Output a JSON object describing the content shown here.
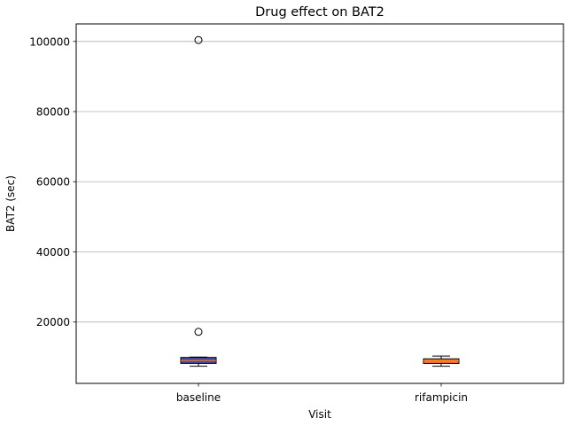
{
  "chart_data": {
    "type": "boxplot",
    "title": "Drug effect on BAT2",
    "xlabel": "Visit",
    "ylabel": "BAT2 (sec)",
    "categories": [
      "baseline",
      "rifampicin"
    ],
    "ylim": [
      2500,
      105000
    ],
    "yticks": [
      20000,
      40000,
      60000,
      80000,
      100000
    ],
    "ytick_labels": [
      "20000",
      "40000",
      "60000",
      "80000",
      "100000"
    ],
    "grid": "y",
    "boxes": [
      {
        "label": "baseline",
        "whisker_low": 7400,
        "q1": 8200,
        "median": 9000,
        "q3": 9900,
        "whisker_high": 10000,
        "outliers": [
          17200,
          100400
        ],
        "color": "#4a4aa8"
      },
      {
        "label": "rifampicin",
        "whisker_low": 7400,
        "q1": 8200,
        "median": 8900,
        "q3": 9500,
        "whisker_high": 10300,
        "outliers": [],
        "color": "#f07840"
      }
    ]
  }
}
